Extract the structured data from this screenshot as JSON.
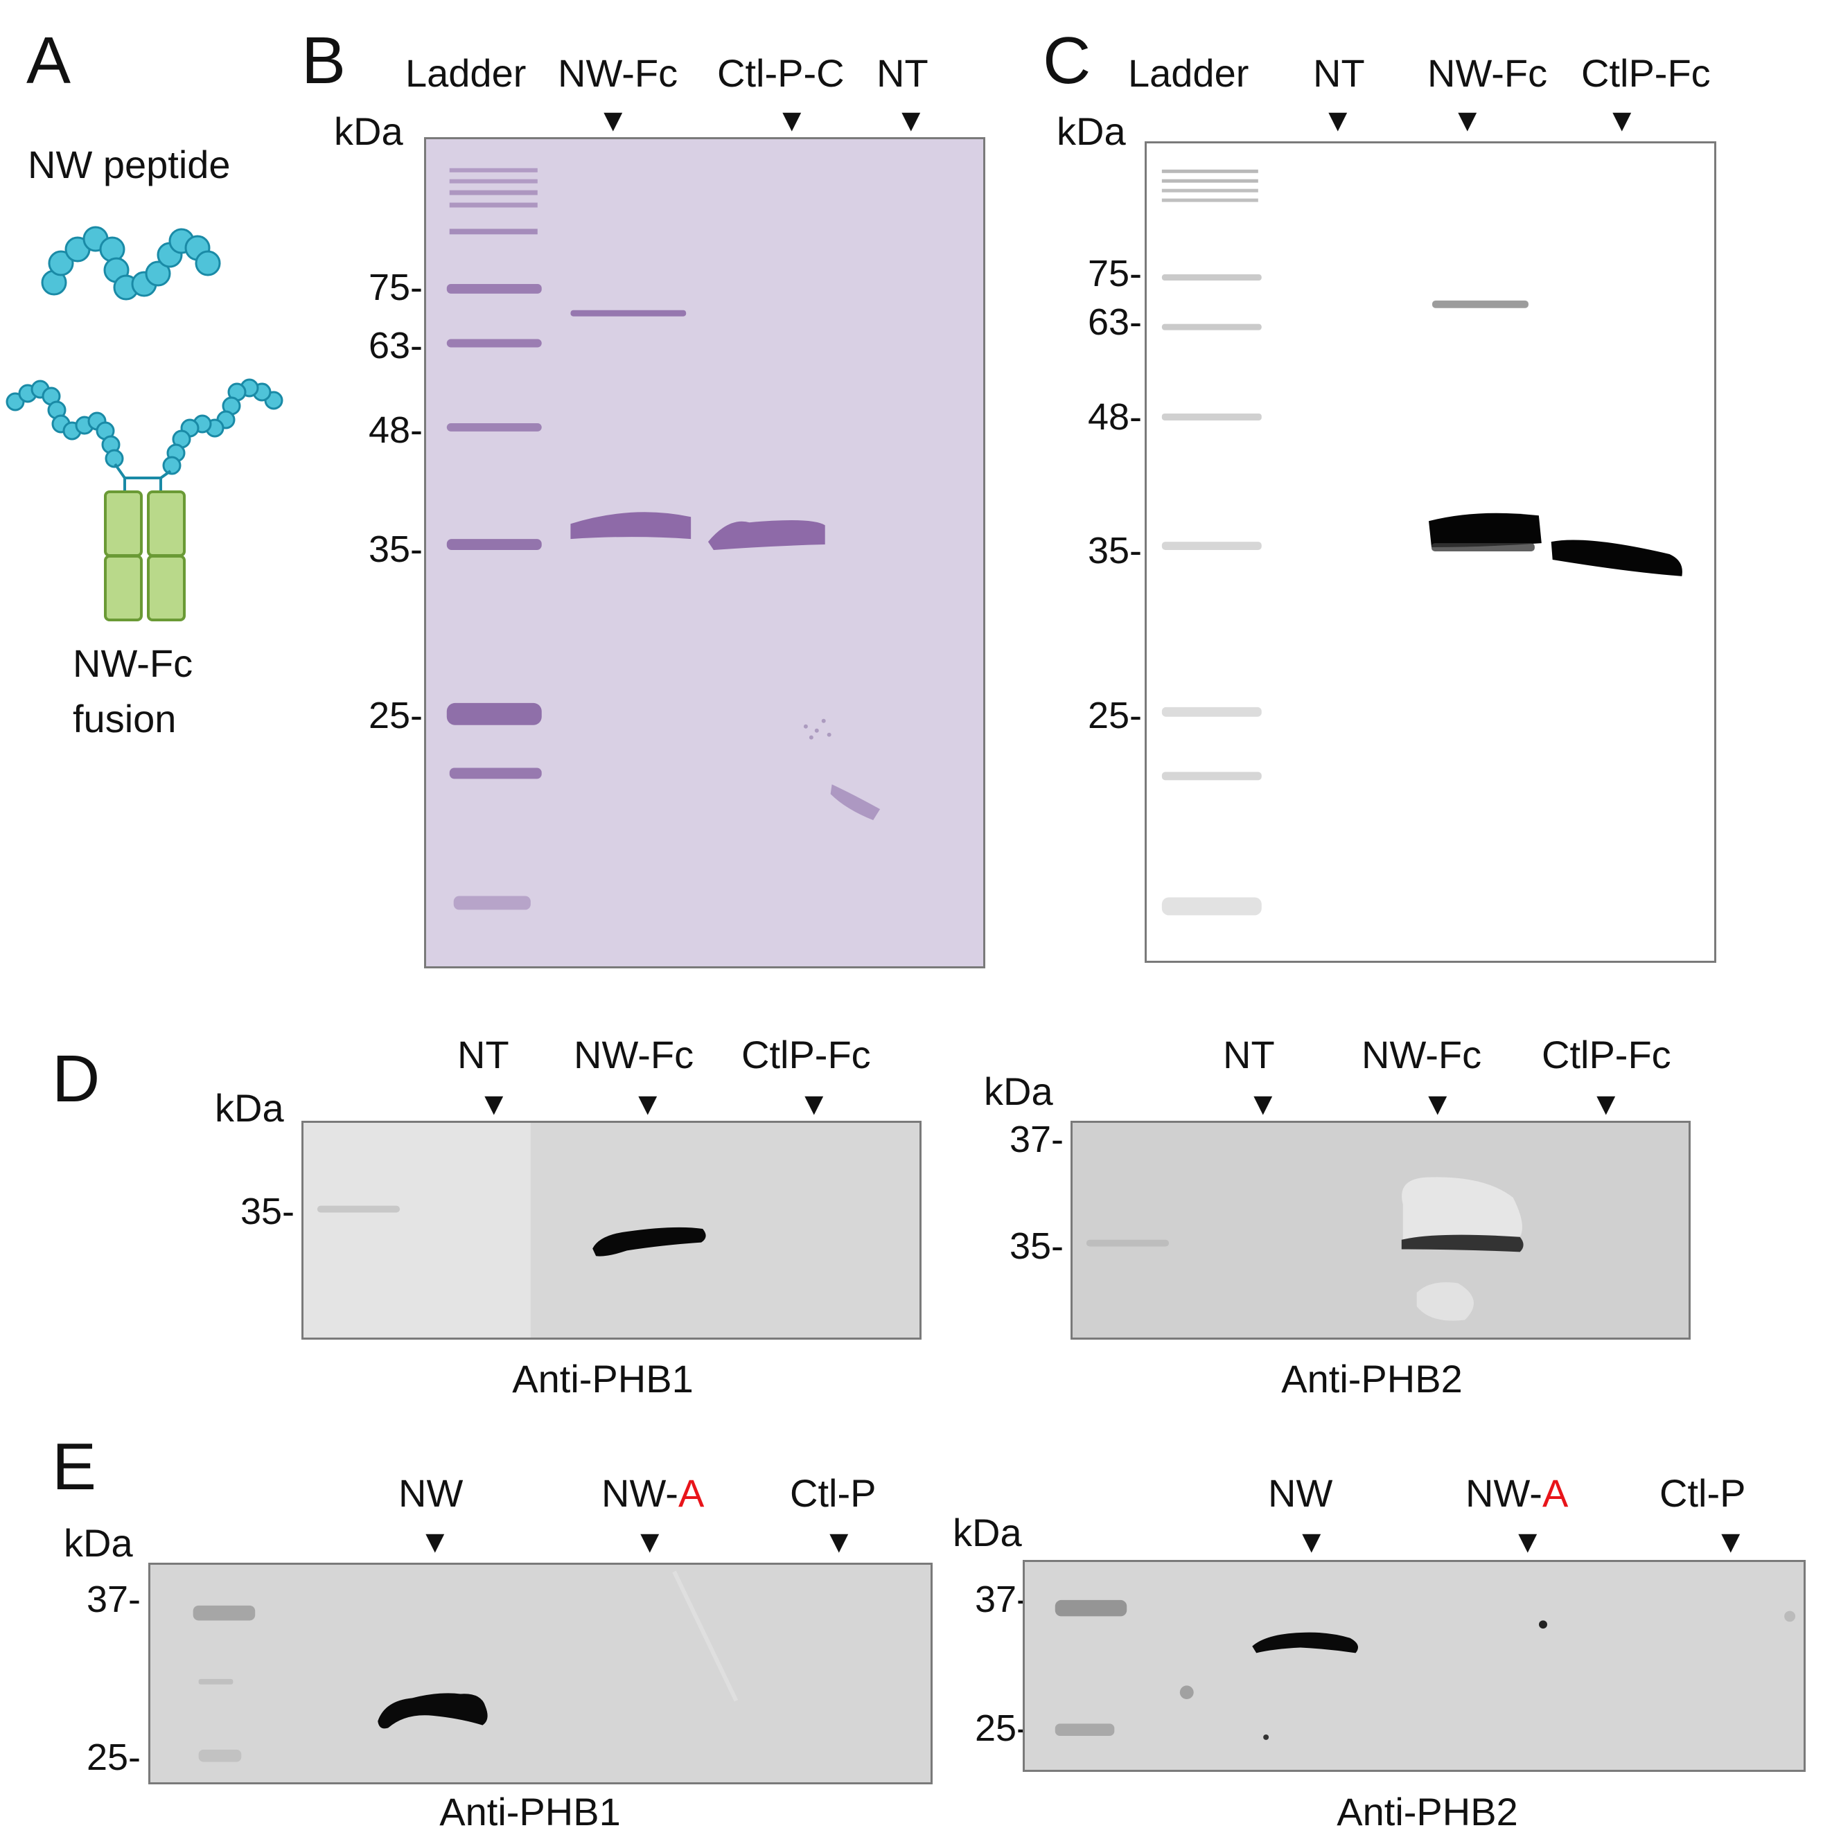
{
  "panelA": {
    "letter": "A",
    "peptide_label": "NW peptide",
    "fusion_label_line1": "NW-Fc",
    "fusion_label_line2": "fusion"
  },
  "panelB": {
    "letter": "B",
    "lanes": [
      "Ladder",
      "NW-Fc",
      "Ctl-P-C",
      "NT"
    ],
    "unit": "kDa",
    "ticks": [
      "75-",
      "63-",
      "48-",
      "35-",
      "25-"
    ]
  },
  "panelC": {
    "letter": "C",
    "lanes": [
      "Ladder",
      "NT",
      "NW-Fc",
      "CtlP-Fc"
    ],
    "unit": "kDa",
    "ticks": [
      "75-",
      "63-",
      "48-",
      "35-",
      "25-"
    ]
  },
  "panelD": {
    "letter": "D",
    "left": {
      "lanes": [
        "NT",
        "NW-Fc",
        "CtlP-Fc"
      ],
      "unit": "kDa",
      "ticks": [
        "35-"
      ],
      "caption": "Anti-PHB1"
    },
    "right": {
      "lanes": [
        "NT",
        "NW-Fc",
        "CtlP-Fc"
      ],
      "unit": "kDa",
      "ticks": [
        "37-",
        "35-"
      ],
      "caption": "Anti-PHB2"
    }
  },
  "panelE": {
    "letter": "E",
    "left": {
      "lane_nw": "NW",
      "lane_nwa_prefix": "NW-",
      "lane_nwa_suffix": "A",
      "lane_ctl": "Ctl-P",
      "unit": "kDa",
      "ticks": [
        "37-",
        "25-"
      ],
      "caption": "Anti-PHB1"
    },
    "right": {
      "lane_nw": "NW",
      "lane_nwa_prefix": "NW-",
      "lane_nwa_suffix": "A",
      "lane_ctl": "Ctl-P",
      "unit": "kDa",
      "ticks": [
        "37-",
        "25-"
      ],
      "caption": "Anti-PHB2"
    }
  },
  "arrow_glyph": "▼",
  "colors": {
    "peptide": "#4fc3d9",
    "peptide_stroke": "#1a8aa6",
    "fc_domain": "#b9d98a",
    "fc_stroke": "#6a9a35",
    "coomassie_bg": "#d8cfe3",
    "coomassie_band": "#8e6aa8",
    "western_bg": "#ffffff",
    "gray_blot_bg": "#d4d4d4",
    "red_highlight": "#e8141a"
  }
}
